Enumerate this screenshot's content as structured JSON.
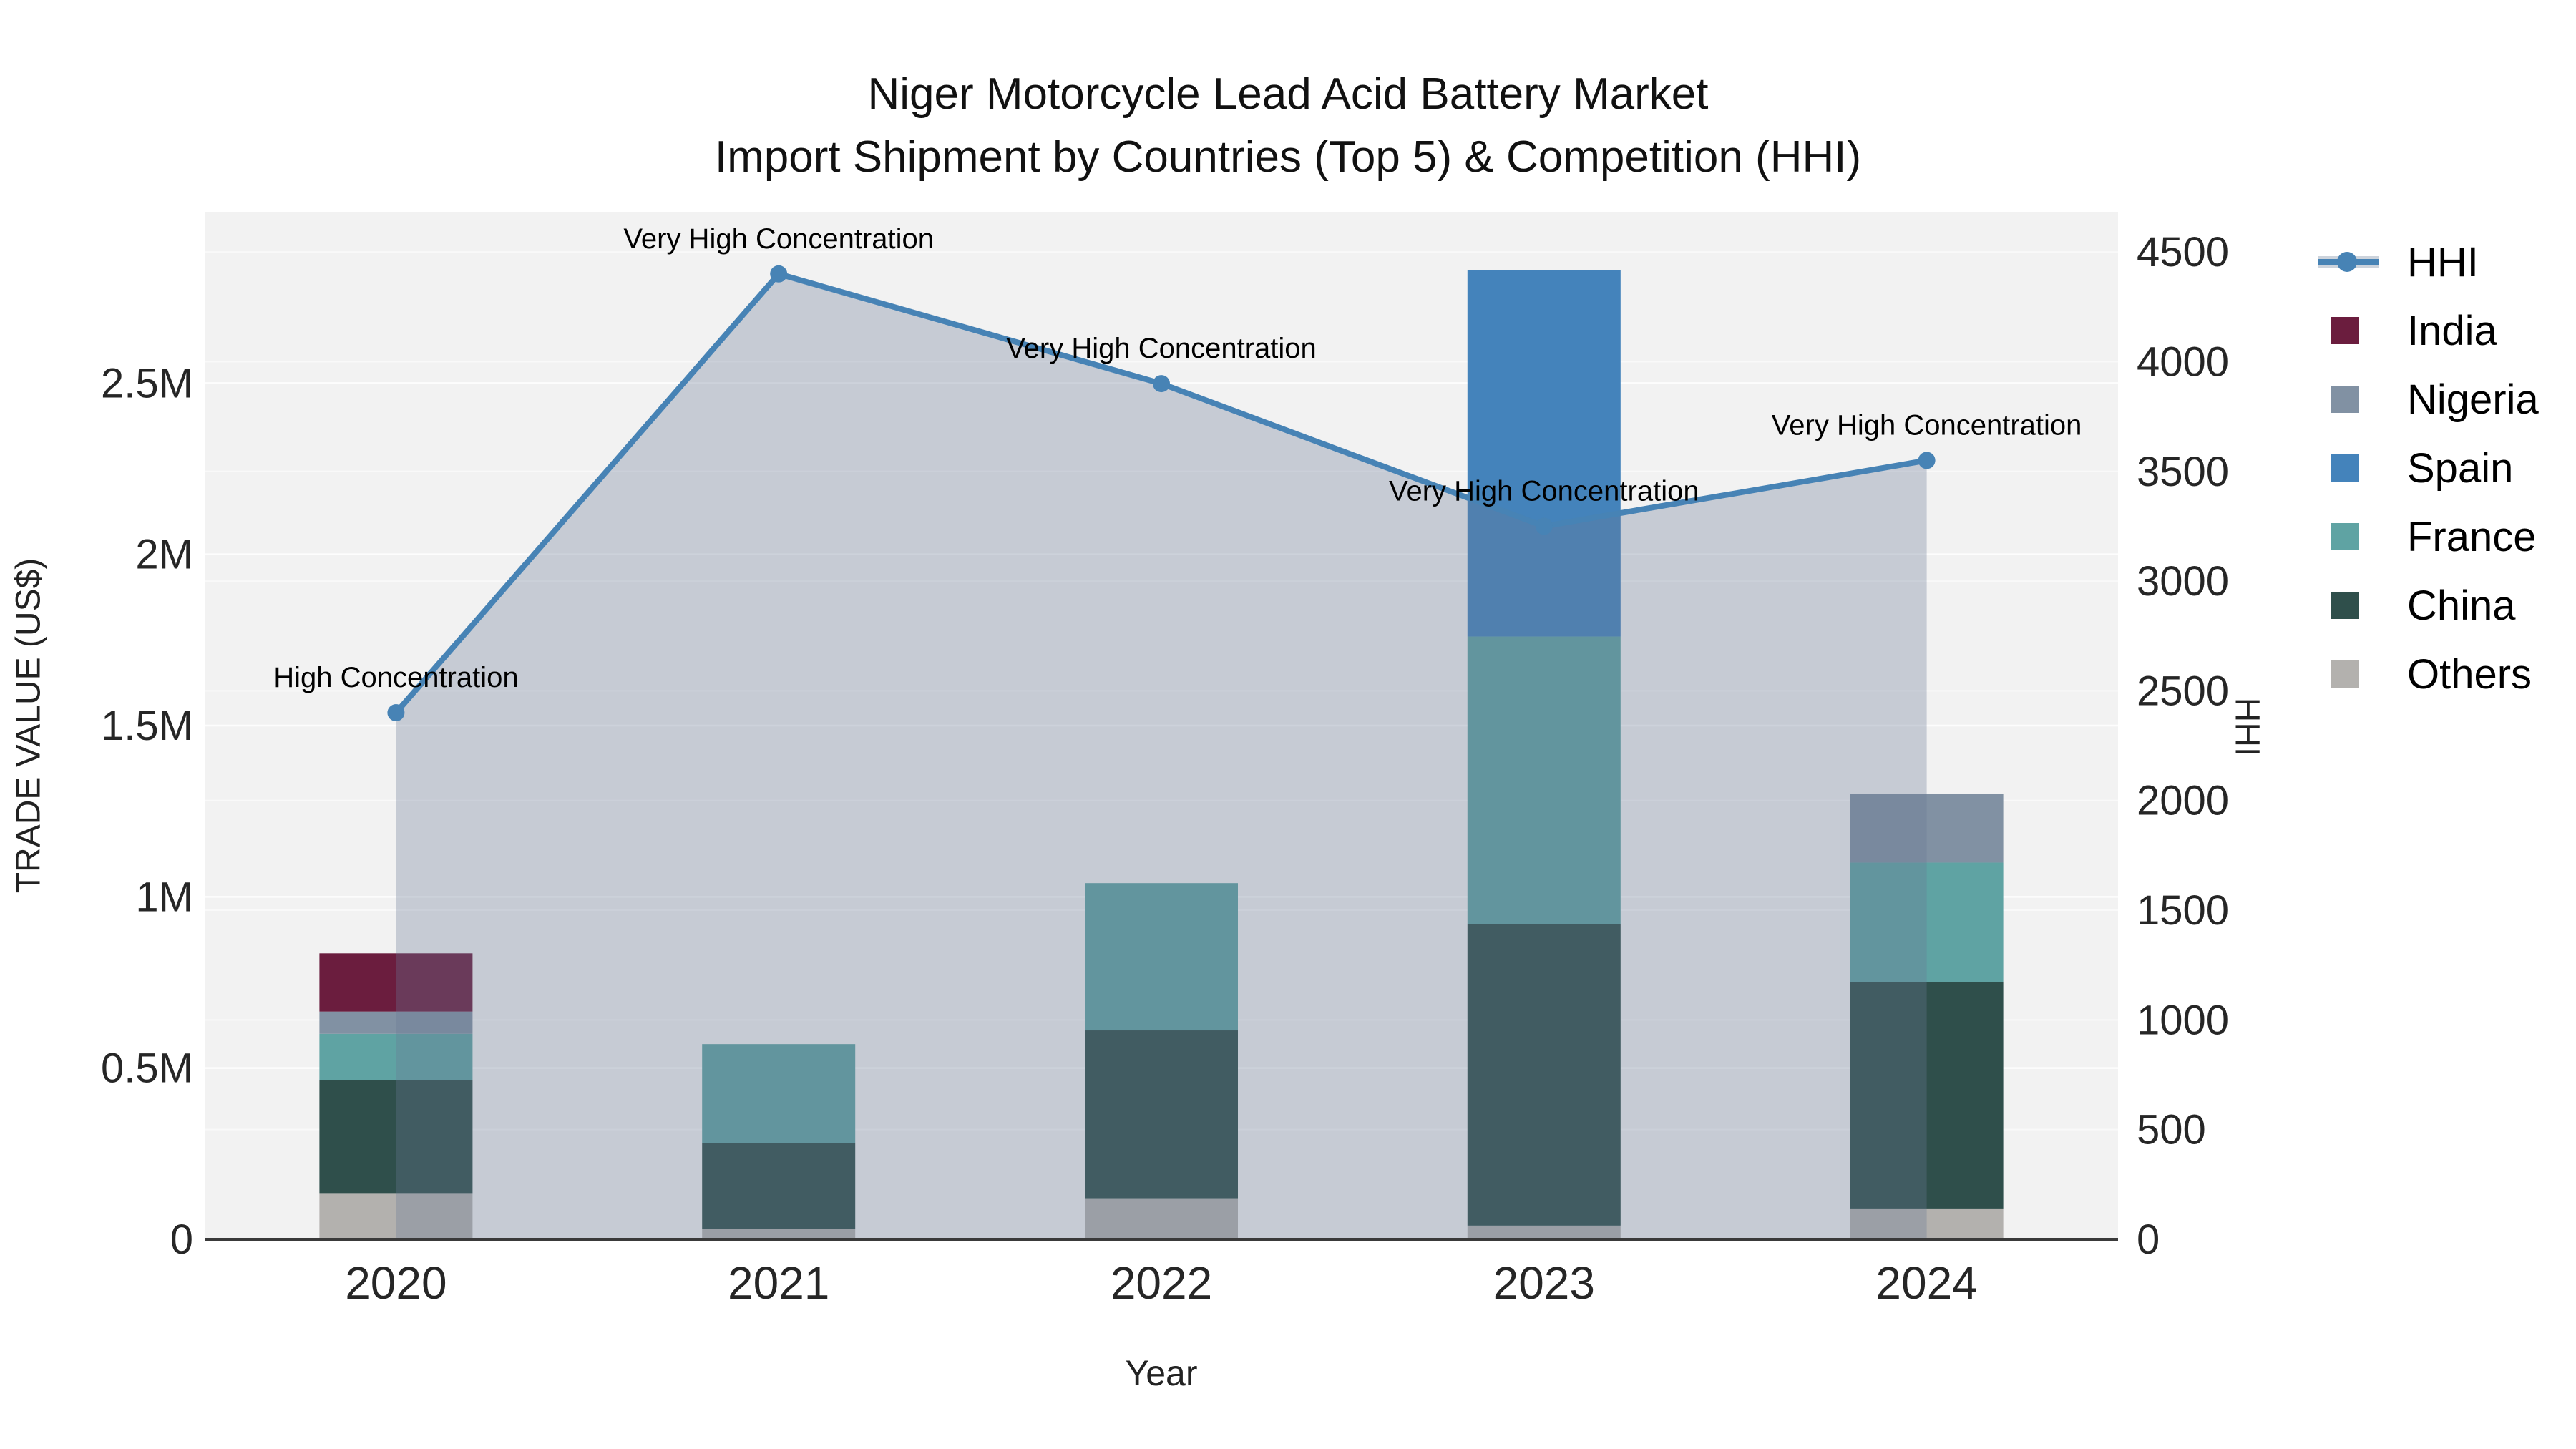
{
  "title": {
    "line1": "Niger Motorcycle Lead Acid Battery Market",
    "line2": "Import Shipment by Countries (Top 5) & Competition (HHI)"
  },
  "axes": {
    "x": {
      "title": "Year",
      "categories": [
        "2020",
        "2021",
        "2022",
        "2023",
        "2024"
      ]
    },
    "y_left": {
      "title": "TRADE VALUE (US$)",
      "tick_labels": [
        "0",
        "0.5M",
        "1M",
        "1.5M",
        "2M",
        "2.5M"
      ],
      "tick_values": [
        0,
        500000,
        1000000,
        1500000,
        2000000,
        2500000
      ],
      "max": 3000000,
      "grid_step": 500000
    },
    "y_right": {
      "title": "HHI",
      "tick_values": [
        0,
        500,
        1000,
        1500,
        2000,
        2500,
        3000,
        3500,
        4000,
        4500
      ],
      "max": 4683,
      "grid_step": 500
    }
  },
  "legend": [
    {
      "label": "HHI",
      "type": "line",
      "color": "#4783b5"
    },
    {
      "label": "India",
      "type": "bar",
      "color": "#6b1d3e"
    },
    {
      "label": "Nigeria",
      "type": "bar",
      "color": "#8191a3"
    },
    {
      "label": "Spain",
      "type": "bar",
      "color": "#4483bb"
    },
    {
      "label": "France",
      "type": "bar",
      "color": "#5fa3a3"
    },
    {
      "label": "China",
      "type": "bar",
      "color": "#2f4f4b"
    },
    {
      "label": "Others",
      "type": "bar",
      "color": "#b3b1ae"
    }
  ],
  "chart_data": {
    "type": "bar+line",
    "title": "Niger Motorcycle Lead Acid Battery Market — Import Shipment by Countries (Top 5) & Competition (HHI)",
    "categories": [
      "2020",
      "2021",
      "2022",
      "2023",
      "2024"
    ],
    "stack_order_bottom_to_top": [
      "Others",
      "China",
      "France",
      "Spain",
      "Nigeria",
      "India"
    ],
    "bar_series": [
      {
        "name": "India",
        "axis": "left",
        "values": [
          170000,
          0,
          0,
          0,
          0
        ]
      },
      {
        "name": "Nigeria",
        "axis": "left",
        "values": [
          65000,
          0,
          0,
          0,
          200000
        ]
      },
      {
        "name": "Spain",
        "axis": "left",
        "values": [
          0,
          0,
          0,
          1070000,
          0
        ]
      },
      {
        "name": "France",
        "axis": "left",
        "values": [
          135000,
          290000,
          430000,
          840000,
          350000
        ]
      },
      {
        "name": "China",
        "axis": "left",
        "values": [
          330000,
          250000,
          490000,
          880000,
          660000
        ]
      },
      {
        "name": "Others",
        "axis": "left",
        "values": [
          135000,
          30000,
          120000,
          40000,
          90000
        ]
      }
    ],
    "line_series": {
      "name": "HHI",
      "axis": "right",
      "style": "line+markers+area_to_zero",
      "line_color": "#4783b5",
      "area_fill": "rgba(105,122,148,0.32)",
      "values": [
        2400,
        4400,
        3900,
        3250,
        3550
      ]
    },
    "annotations": [
      {
        "category": "2020",
        "text": "High Concentration"
      },
      {
        "category": "2021",
        "text": "Very High Concentration"
      },
      {
        "category": "2022",
        "text": "Very High Concentration"
      },
      {
        "category": "2023",
        "text": "Very High Concentration"
      },
      {
        "category": "2024",
        "text": "Very High Concentration"
      }
    ],
    "layout_hints": {
      "plot_background": "#f2f2f2",
      "gridlines": "both axes, light",
      "legend_position": "right",
      "ylim_left": [
        0,
        3000000
      ],
      "ylim_right": [
        0,
        4683
      ]
    }
  }
}
